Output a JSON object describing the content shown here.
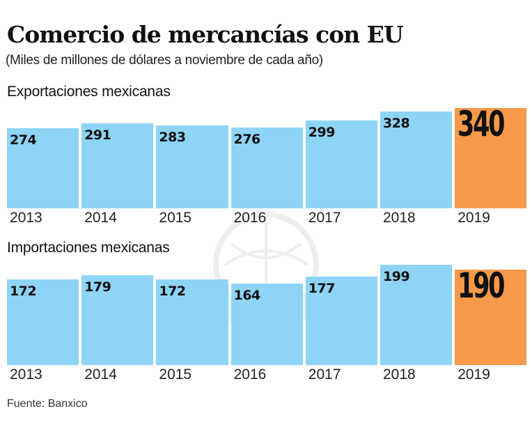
{
  "header": {
    "title": "Comercio de mercancías con EU",
    "subtitle": "(Miles de millones de dólares a noviembre de cada año)"
  },
  "footer": {
    "source": "Fuente: Banxico"
  },
  "colors": {
    "bar": "#8ed4f6",
    "highlight": "#f7994a",
    "text": "#111111"
  },
  "chart_data": [
    {
      "type": "bar",
      "title": "Exportaciones mexicanas",
      "xlabel": "",
      "ylabel": "Miles de millones de dólares",
      "categories": [
        "2013",
        "2014",
        "2015",
        "2016",
        "2017",
        "2018",
        "2019"
      ],
      "values": [
        274,
        291,
        283,
        276,
        299,
        328,
        340
      ],
      "highlight_category": "2019",
      "grid": false,
      "data_labels": [
        "274",
        "291",
        "283",
        "276",
        "299",
        "328",
        "340"
      ]
    },
    {
      "type": "bar",
      "title": "Importaciones mexicanas",
      "xlabel": "",
      "ylabel": "Miles de millones de dólares",
      "categories": [
        "2013",
        "2014",
        "2015",
        "2016",
        "2017",
        "2018",
        "2019"
      ],
      "values": [
        172,
        179,
        172,
        164,
        177,
        199,
        190
      ],
      "highlight_category": "2019",
      "grid": false,
      "data_labels": [
        "172",
        "179",
        "172",
        "164",
        "177",
        "199",
        "190"
      ]
    }
  ]
}
